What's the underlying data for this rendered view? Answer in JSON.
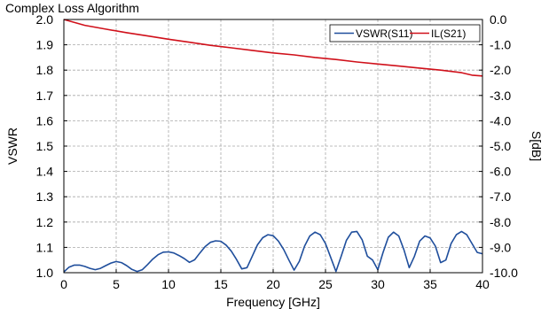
{
  "chart_data": {
    "type": "line",
    "title": "Complex Loss Algorithm",
    "xlabel": "Frequency [GHz]",
    "ylabel_left": "VSWR",
    "ylabel_right": "S[dB]",
    "xlim": [
      0,
      40
    ],
    "ylim_left": [
      1.0,
      2.0
    ],
    "ylim_right": [
      -10.0,
      0.0
    ],
    "x_ticks": [
      "0",
      "5",
      "10",
      "15",
      "20",
      "25",
      "30",
      "35",
      "40"
    ],
    "y_left_ticks": [
      "1.0",
      "1.1",
      "1.2",
      "1.3",
      "1.4",
      "1.5",
      "1.6",
      "1.7",
      "1.8",
      "1.9",
      "2.0"
    ],
    "y_right_ticks": [
      "-10.0",
      "-9.0",
      "-8.0",
      "-7.0",
      "-6.0",
      "-5.0",
      "-4.0",
      "-3.0",
      "-2.0",
      "-1.0",
      "0.0"
    ],
    "grid": true,
    "legend_position": "top-right",
    "series": [
      {
        "name": "VSWR(S11)",
        "axis": "left",
        "color": "#1f4e9c",
        "x": [
          0,
          0.5,
          1,
          1.5,
          2,
          2.5,
          3,
          3.5,
          4,
          4.5,
          5,
          5.5,
          6,
          6.5,
          7,
          7.5,
          8,
          8.5,
          9,
          9.5,
          10,
          10.5,
          11,
          11.5,
          12,
          12.5,
          13,
          13.5,
          14,
          14.5,
          15,
          15.5,
          16,
          16.5,
          17,
          17.5,
          18,
          18.5,
          19,
          19.5,
          20,
          20.5,
          21,
          21.5,
          22,
          22.5,
          23,
          23.5,
          24,
          24.5,
          25,
          25.5,
          26,
          26.5,
          27,
          27.5,
          28,
          28.5,
          29,
          29.5,
          30,
          30.5,
          31,
          31.5,
          32,
          32.5,
          33,
          33.5,
          34,
          34.5,
          35,
          35.5,
          36,
          36.5,
          37,
          37.5,
          38,
          38.5,
          39,
          39.5,
          40
        ],
        "values": [
          1.003,
          1.022,
          1.03,
          1.03,
          1.025,
          1.017,
          1.012,
          1.017,
          1.028,
          1.038,
          1.044,
          1.04,
          1.028,
          1.013,
          1.005,
          1.012,
          1.032,
          1.054,
          1.071,
          1.081,
          1.082,
          1.078,
          1.068,
          1.056,
          1.041,
          1.051,
          1.078,
          1.103,
          1.12,
          1.126,
          1.124,
          1.109,
          1.085,
          1.052,
          1.015,
          1.02,
          1.065,
          1.11,
          1.138,
          1.15,
          1.146,
          1.125,
          1.092,
          1.05,
          1.01,
          1.045,
          1.105,
          1.145,
          1.16,
          1.15,
          1.115,
          1.06,
          1.005,
          1.065,
          1.128,
          1.16,
          1.163,
          1.13,
          1.065,
          1.05,
          1.012,
          1.08,
          1.14,
          1.16,
          1.145,
          1.09,
          1.02,
          1.065,
          1.125,
          1.145,
          1.137,
          1.105,
          1.04,
          1.05,
          1.115,
          1.15,
          1.163,
          1.15,
          1.115,
          1.08,
          1.075
        ]
      },
      {
        "name": "IL(S21)",
        "axis": "right",
        "color": "#d0101a",
        "x": [
          0,
          2,
          4,
          6,
          8,
          10,
          12,
          14,
          16,
          18,
          20,
          22,
          24,
          26,
          28,
          30,
          32,
          34,
          36,
          38,
          39,
          40
        ],
        "values": [
          0.0,
          -0.23,
          -0.38,
          -0.52,
          -0.65,
          -0.78,
          -0.9,
          -1.02,
          -1.12,
          -1.22,
          -1.32,
          -1.4,
          -1.5,
          -1.58,
          -1.68,
          -1.76,
          -1.84,
          -1.92,
          -2.0,
          -2.1,
          -2.2,
          -2.23
        ]
      }
    ]
  }
}
